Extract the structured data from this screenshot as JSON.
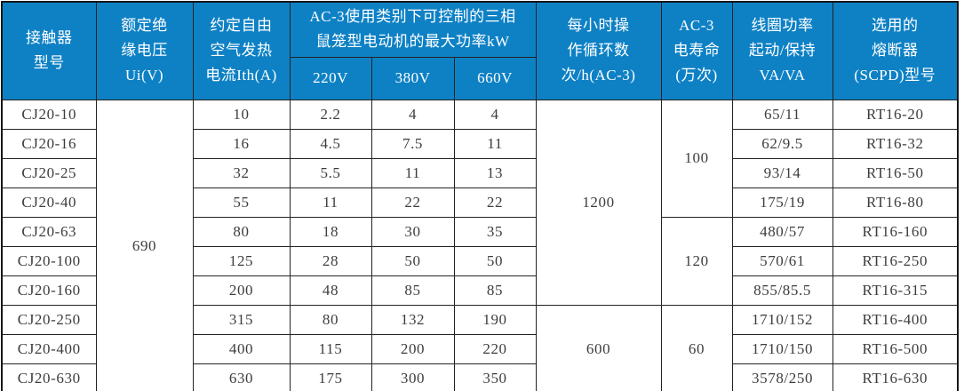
{
  "accent_color": "#0e81c5",
  "table": {
    "header": {
      "model": [
        "接触器",
        "型号"
      ],
      "rated_insulation_voltage": [
        "额定绝",
        "缘电压",
        "Ui(V)"
      ],
      "conventional_thermal_current": [
        "约定自由",
        "空气发热",
        "电流Ith(A)"
      ],
      "ac3_max_power_group": [
        "AC-3使用类别下可控制的三相",
        "鼠笼型电动机的最大功率kW"
      ],
      "voltage_220": "220V",
      "voltage_380": "380V",
      "voltage_660": "660V",
      "operating_cycles": [
        "每小时操",
        "作循环数",
        "次/h(AC-3)"
      ],
      "electrical_life": [
        "AC-3",
        "电寿命",
        "(万次)"
      ],
      "coil_power": [
        "线圈功率",
        "起动/保持",
        "VA/VA"
      ],
      "fuse_model": [
        "选用的",
        "熔断器",
        "(SCPD)型号"
      ]
    },
    "column_names": [
      "model",
      "rated-insulation-voltage",
      "thermal-current",
      "max-power-220v",
      "max-power-380v",
      "max-power-660v",
      "operating-cycles",
      "electrical-life",
      "coil-power",
      "fuse-model"
    ],
    "body": [
      [
        {
          "t": "CJ20-10"
        },
        {
          "t": "690",
          "rs": 10
        },
        {
          "t": "10"
        },
        {
          "t": "2.2"
        },
        {
          "t": "4"
        },
        {
          "t": "4"
        },
        {
          "t": "1200",
          "rs": 7
        },
        {
          "t": "100",
          "rs": 4
        },
        {
          "t": "65/11"
        },
        {
          "t": "RT16-20"
        }
      ],
      [
        {
          "t": "CJ20-16"
        },
        {
          "t": "16"
        },
        {
          "t": "4.5"
        },
        {
          "t": "7.5"
        },
        {
          "t": "11"
        },
        {
          "t": "62/9.5"
        },
        {
          "t": "RT16-32"
        }
      ],
      [
        {
          "t": "CJ20-25"
        },
        {
          "t": "32"
        },
        {
          "t": "5.5"
        },
        {
          "t": "11"
        },
        {
          "t": "13"
        },
        {
          "t": "93/14"
        },
        {
          "t": "RT16-50"
        }
      ],
      [
        {
          "t": "CJ20-40"
        },
        {
          "t": "55"
        },
        {
          "t": "11"
        },
        {
          "t": "22"
        },
        {
          "t": "22"
        },
        {
          "t": "175/19"
        },
        {
          "t": "RT16-80"
        }
      ],
      [
        {
          "t": "CJ20-63"
        },
        {
          "t": "80"
        },
        {
          "t": "18"
        },
        {
          "t": "30"
        },
        {
          "t": "35"
        },
        {
          "t": "120",
          "rs": 3
        },
        {
          "t": "480/57"
        },
        {
          "t": "RT16-160"
        }
      ],
      [
        {
          "t": "CJ20-100"
        },
        {
          "t": "125"
        },
        {
          "t": "28"
        },
        {
          "t": "50"
        },
        {
          "t": "50"
        },
        {
          "t": "570/61"
        },
        {
          "t": "RT16-250"
        }
      ],
      [
        {
          "t": "CJ20-160"
        },
        {
          "t": "200"
        },
        {
          "t": "48"
        },
        {
          "t": "85"
        },
        {
          "t": "85"
        },
        {
          "t": "855/85.5"
        },
        {
          "t": "RT16-315"
        }
      ],
      [
        {
          "t": "CJ20-250"
        },
        {
          "t": "315"
        },
        {
          "t": "80"
        },
        {
          "t": "132"
        },
        {
          "t": "190"
        },
        {
          "t": "600",
          "rs": 3
        },
        {
          "t": "60",
          "rs": 3
        },
        {
          "t": "1710/152"
        },
        {
          "t": "RT16-400"
        }
      ],
      [
        {
          "t": "CJ20-400"
        },
        {
          "t": "400"
        },
        {
          "t": "115"
        },
        {
          "t": "200"
        },
        {
          "t": "220"
        },
        {
          "t": "1710/150"
        },
        {
          "t": "RT16-500"
        }
      ],
      [
        {
          "t": "CJ20-630"
        },
        {
          "t": "630"
        },
        {
          "t": "175"
        },
        {
          "t": "300"
        },
        {
          "t": "350"
        },
        {
          "t": "3578/250"
        },
        {
          "t": "RT16-630"
        }
      ]
    ]
  }
}
